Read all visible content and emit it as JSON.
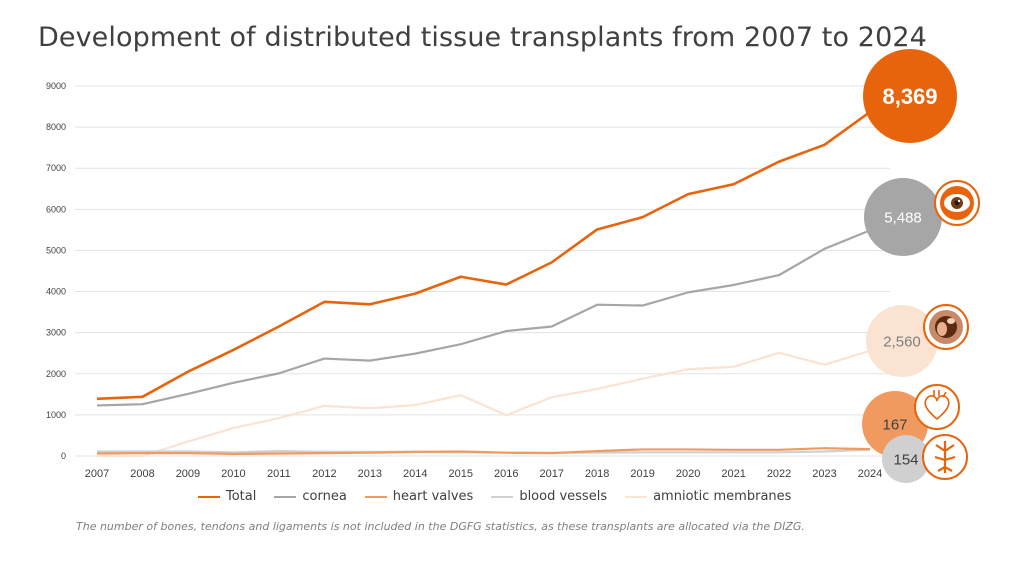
{
  "title": "Development of distributed tissue transplants from 2007 to 2024",
  "footnote": "The number of bones, tendons and ligaments is not included in the DGFG statistics, as these transplants are allocated via the DIZG.",
  "colors": {
    "total": "#E8640C",
    "cornea": "#A6A6A6",
    "heart_valves": "#F19A60",
    "blood_vessels": "#D0D0D0",
    "amniotic": "#FBE3D2",
    "grid": "#E3E3E3",
    "axis_text": "#404040"
  },
  "chart_data": {
    "type": "line",
    "title": "Development of distributed tissue transplants from 2007 to 2024",
    "x": [
      "2007",
      "2008",
      "2009",
      "2010",
      "2011",
      "2012",
      "2013",
      "2014",
      "2015",
      "2016",
      "2017",
      "2018",
      "2019",
      "2020",
      "2021",
      "2022",
      "2023",
      "2024"
    ],
    "ylim": [
      0,
      9000
    ],
    "yticks": [
      0,
      1000,
      2000,
      3000,
      4000,
      5000,
      6000,
      7000,
      8000,
      9000
    ],
    "grid": true,
    "legend_position": "bottom",
    "series": [
      {
        "name": "Total",
        "key": "total",
        "values": [
          1390,
          1440,
          2050,
          2580,
          3150,
          3750,
          3690,
          3950,
          4360,
          4170,
          4710,
          5510,
          5810,
          6370,
          6610,
          7160,
          7570,
          8369
        ]
      },
      {
        "name": "cornea",
        "key": "cornea",
        "values": [
          1230,
          1260,
          1510,
          1780,
          2010,
          2370,
          2320,
          2490,
          2720,
          3040,
          3150,
          3680,
          3660,
          3980,
          4160,
          4400,
          5040,
          5488
        ]
      },
      {
        "name": "heart valves",
        "key": "heart_valves",
        "values": [
          60,
          70,
          70,
          50,
          60,
          70,
          80,
          100,
          110,
          80,
          70,
          120,
          160,
          160,
          150,
          150,
          190,
          167
        ]
      },
      {
        "name": "blood vessels",
        "key": "blood_vessels",
        "values": [
          110,
          110,
          110,
          90,
          120,
          100,
          100,
          100,
          90,
          80,
          80,
          80,
          90,
          90,
          90,
          90,
          110,
          154
        ]
      },
      {
        "name": "amniotic membranes",
        "key": "amniotic",
        "values": [
          0,
          0,
          350,
          680,
          920,
          1220,
          1160,
          1240,
          1480,
          990,
          1430,
          1630,
          1880,
          2110,
          2170,
          2510,
          2220,
          2560
        ]
      }
    ],
    "endpoint_labels": [
      {
        "series": "total",
        "text": "8,369"
      },
      {
        "series": "cornea",
        "text": "5,488"
      },
      {
        "series": "amniotic",
        "text": "2,560"
      },
      {
        "series": "heart_valves",
        "text": "167"
      },
      {
        "series": "blood_vessels",
        "text": "154"
      }
    ]
  },
  "icons": [
    {
      "name": "cornea-eye-icon",
      "series": "cornea"
    },
    {
      "name": "amniotic-membrane-icon",
      "series": "amniotic"
    },
    {
      "name": "heart-icon",
      "series": "heart_valves"
    },
    {
      "name": "blood-vessel-icon",
      "series": "blood_vessels"
    }
  ]
}
